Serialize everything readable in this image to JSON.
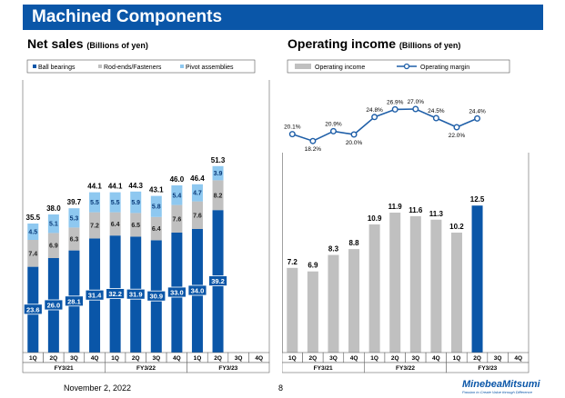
{
  "page": {
    "title": "Machined Components",
    "date": "November 2, 2022",
    "page_number": "8",
    "brand": "MinebeaMitsumi",
    "brand_tagline": "Passion to Create Value through Difference"
  },
  "colors": {
    "title_bg": "#0a56a8",
    "ball_bearings": "#0a56a8",
    "rod_ends": "#c0c0c0",
    "pivot": "#8ec8f0",
    "op_income": "#c0c0c0",
    "op_income_highlight": "#0a56a8",
    "margin_line": "#1f5fa8"
  },
  "chart_data": [
    {
      "type": "bar",
      "stacked": true,
      "title": "Net sales",
      "subtitle": "(Billions of yen)",
      "categories": [
        "1Q",
        "2Q",
        "3Q",
        "4Q",
        "1Q",
        "2Q",
        "3Q",
        "4Q",
        "1Q",
        "2Q",
        "3Q",
        "4Q"
      ],
      "groups": [
        {
          "label": "FY3/21",
          "categories": [
            "1Q",
            "2Q",
            "3Q",
            "4Q"
          ]
        },
        {
          "label": "FY3/22",
          "categories": [
            "1Q",
            "2Q",
            "3Q",
            "4Q"
          ]
        },
        {
          "label": "FY3/23",
          "categories": [
            "1Q",
            "2Q",
            "3Q",
            "4Q"
          ]
        }
      ],
      "series": [
        {
          "name": "Ball bearings",
          "values": [
            23.6,
            26.0,
            28.1,
            31.4,
            32.2,
            31.9,
            30.9,
            33.0,
            34.0,
            39.2,
            null,
            null
          ]
        },
        {
          "name": "Rod-ends/Fasteners",
          "values": [
            7.4,
            6.9,
            6.3,
            7.2,
            6.4,
            6.5,
            6.4,
            7.6,
            7.6,
            8.2,
            null,
            null
          ]
        },
        {
          "name": "Pivot assemblies",
          "values": [
            4.5,
            5.1,
            5.3,
            5.5,
            5.5,
            5.9,
            5.8,
            5.4,
            4.7,
            3.9,
            null,
            null
          ]
        }
      ],
      "totals": [
        35.5,
        38.0,
        39.7,
        44.1,
        44.1,
        44.3,
        43.1,
        46.0,
        46.4,
        51.3,
        null,
        null
      ],
      "ylim": [
        0,
        65
      ],
      "legend_position": "top"
    },
    {
      "type": "bar",
      "title": "Operating income",
      "subtitle": "(Billions of yen)",
      "categories": [
        "1Q",
        "2Q",
        "3Q",
        "4Q",
        "1Q",
        "2Q",
        "3Q",
        "4Q",
        "1Q",
        "2Q",
        "3Q",
        "4Q"
      ],
      "groups": [
        {
          "label": "FY3/21",
          "categories": [
            "1Q",
            "2Q",
            "3Q",
            "4Q"
          ]
        },
        {
          "label": "FY3/22",
          "categories": [
            "1Q",
            "2Q",
            "3Q",
            "4Q"
          ]
        },
        {
          "label": "FY3/23",
          "categories": [
            "1Q",
            "2Q",
            "3Q",
            "4Q"
          ]
        }
      ],
      "series": [
        {
          "name": "Operating income",
          "values": [
            7.2,
            6.9,
            8.3,
            8.8,
            10.9,
            11.9,
            11.6,
            11.3,
            10.2,
            12.5,
            null,
            null
          ],
          "highlight_index": 9
        }
      ],
      "line_series": [
        {
          "name": "Operating margin",
          "values": [
            20.1,
            18.2,
            20.9,
            20.0,
            24.8,
            26.9,
            27.0,
            24.5,
            22.0,
            24.4,
            null,
            null
          ],
          "labels": [
            "20.1%",
            "18.2%",
            "20.9%",
            "20.0%",
            "24.8%",
            "26.9%",
            "27.0%",
            "24.5%",
            "22.0%",
            "24.4%",
            "",
            ""
          ],
          "ylim": [
            12,
            32
          ]
        }
      ],
      "ylim": [
        0,
        17
      ],
      "legend_position": "top"
    }
  ]
}
